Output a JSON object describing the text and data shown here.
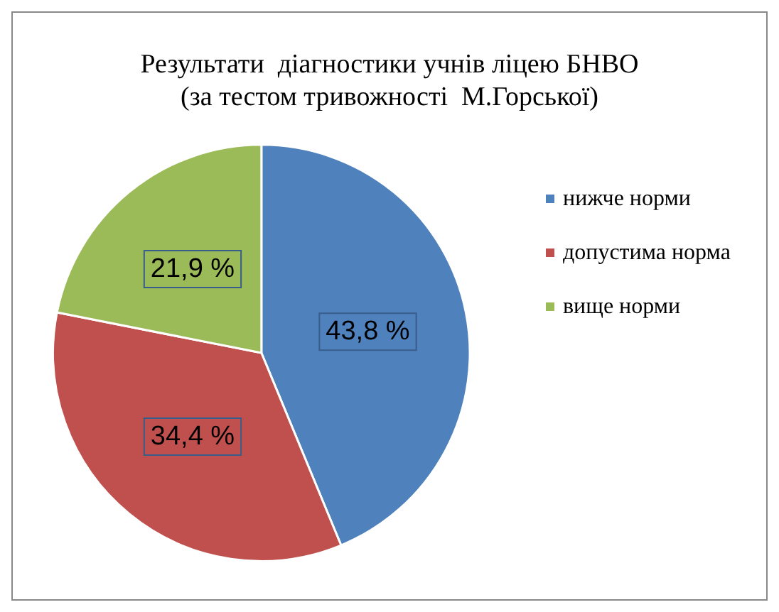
{
  "chart_data": {
    "type": "pie",
    "title": "Результати  діагностики учнів ліцею БНВО",
    "subtitle": "(за тестом тривожності  М.Горської)",
    "categories": [
      "нижче норми",
      "допустима норма",
      "вище норми"
    ],
    "values": [
      43.8,
      34.4,
      21.9
    ],
    "value_labels": [
      "43,8 %",
      "34,4 %",
      "21,9 %"
    ],
    "colors": [
      "#4f81bd",
      "#c0504d",
      "#9bbb59"
    ],
    "legend": "right"
  }
}
